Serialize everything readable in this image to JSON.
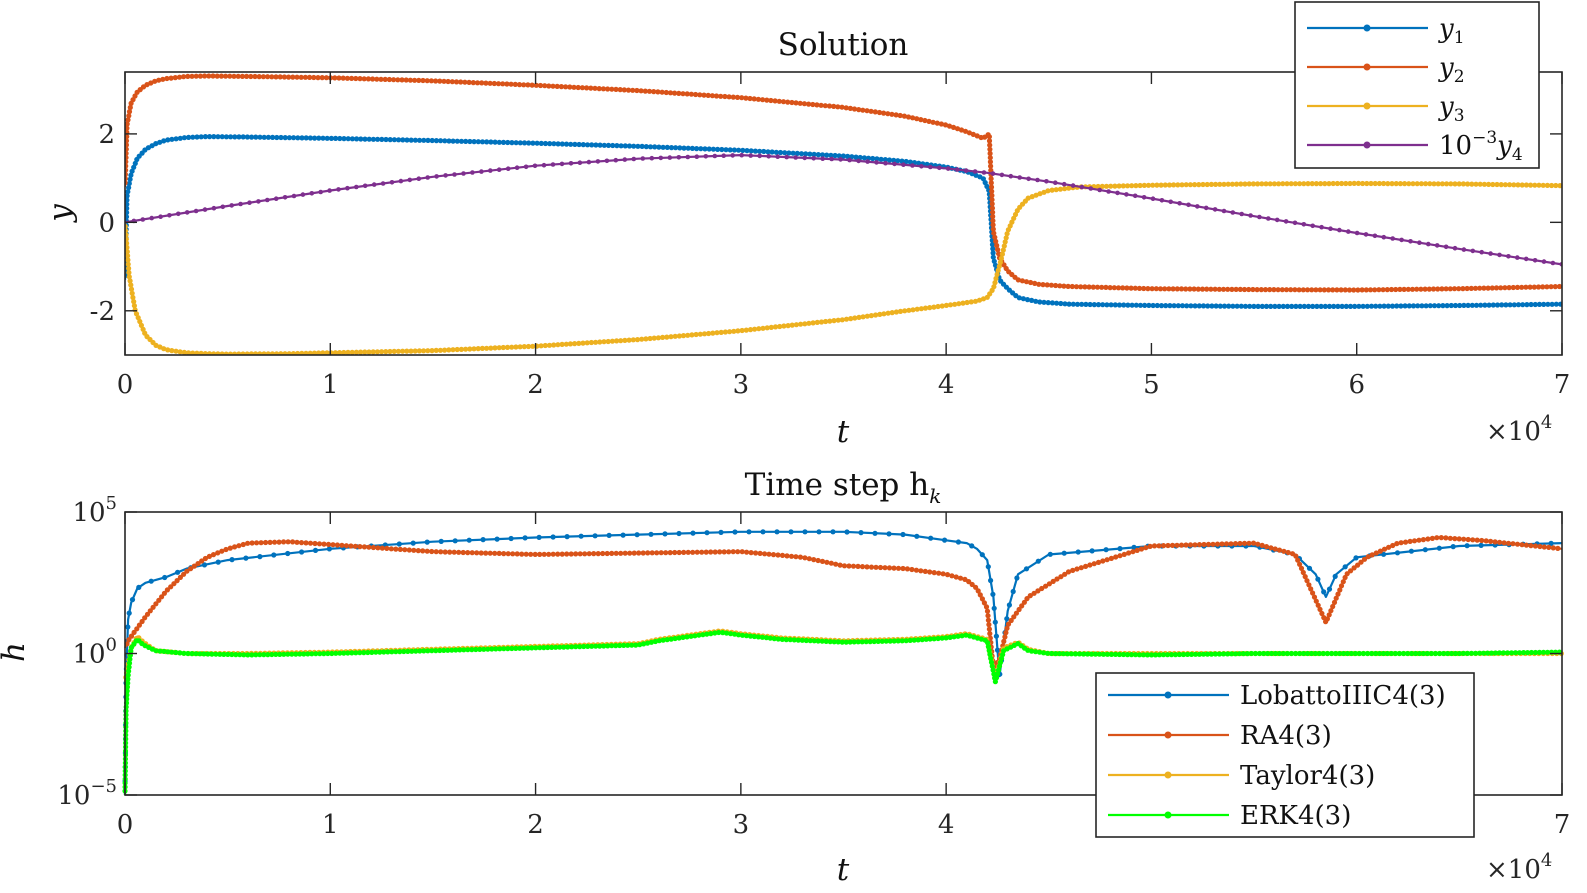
{
  "chart_data": [
    {
      "type": "line",
      "title": "Solution",
      "xlabel": "t",
      "ylabel": "y",
      "x_exponent_label": "×10",
      "x_exponent_sup": "4",
      "xlim": [
        0,
        70000
      ],
      "ylim": [
        -3,
        3.4
      ],
      "xticks": [
        0,
        10000,
        20000,
        30000,
        40000,
        50000,
        60000,
        70000
      ],
      "xticklabels": [
        "0",
        "1",
        "2",
        "3",
        "4",
        "5",
        "6",
        "7"
      ],
      "yticks": [
        -2,
        0,
        2
      ],
      "yticklabels": [
        "-2",
        "0",
        "2"
      ],
      "grid": false,
      "legend_position": "top-right",
      "series": [
        {
          "name": "y",
          "subscript": "1",
          "color": "#0072BD",
          "x": [
            0,
            100,
            300,
            600,
            1000,
            1500,
            2000,
            3000,
            4000,
            6000,
            10000,
            15000,
            20000,
            25000,
            30000,
            35000,
            38000,
            40000,
            41000,
            41800,
            42100,
            42300,
            42600,
            43000,
            43500,
            44500,
            46000,
            50000,
            55000,
            60000,
            65000,
            70000
          ],
          "y": [
            -1.3,
            0.6,
            1.1,
            1.45,
            1.65,
            1.78,
            1.86,
            1.92,
            1.94,
            1.93,
            1.9,
            1.85,
            1.79,
            1.72,
            1.63,
            1.5,
            1.38,
            1.25,
            1.15,
            1.0,
            0.7,
            -0.8,
            -1.3,
            -1.5,
            -1.7,
            -1.8,
            -1.85,
            -1.88,
            -1.9,
            -1.9,
            -1.88,
            -1.85
          ]
        },
        {
          "name": "y",
          "subscript": "2",
          "color": "#D95319",
          "x": [
            0,
            100,
            300,
            600,
            1000,
            1500,
            2000,
            3000,
            4000,
            6000,
            10000,
            15000,
            20000,
            25000,
            30000,
            35000,
            38000,
            40000,
            41000,
            41800,
            42100,
            42300,
            42600,
            43000,
            43500,
            44500,
            46000,
            50000,
            55000,
            60000,
            65000,
            70000
          ],
          "y": [
            0.8,
            2.2,
            2.7,
            2.95,
            3.1,
            3.2,
            3.25,
            3.3,
            3.31,
            3.3,
            3.27,
            3.2,
            3.1,
            2.98,
            2.82,
            2.6,
            2.4,
            2.2,
            2.05,
            1.9,
            2.0,
            -0.2,
            -0.8,
            -1.1,
            -1.3,
            -1.4,
            -1.45,
            -1.5,
            -1.52,
            -1.53,
            -1.5,
            -1.45
          ]
        },
        {
          "name": "y",
          "subscript": "3",
          "color": "#EDB120",
          "x": [
            0,
            200,
            500,
            1000,
            1500,
            2000,
            3000,
            4000,
            5000,
            8000,
            15000,
            20000,
            25000,
            30000,
            35000,
            38000,
            40000,
            41500,
            42000,
            42300,
            42700,
            43000,
            43500,
            44000,
            45000,
            46500,
            50000,
            55000,
            60000,
            65000,
            70000
          ],
          "y": [
            0,
            -1.2,
            -2.0,
            -2.55,
            -2.78,
            -2.88,
            -2.95,
            -2.97,
            -2.98,
            -2.97,
            -2.9,
            -2.8,
            -2.65,
            -2.45,
            -2.2,
            -2.0,
            -1.88,
            -1.78,
            -1.7,
            -1.5,
            -0.8,
            -0.2,
            0.3,
            0.55,
            0.72,
            0.8,
            0.84,
            0.87,
            0.88,
            0.87,
            0.83
          ]
        },
        {
          "name": "10",
          "superscript": "−3",
          "suffix": "y",
          "suffix_subscript": "4",
          "color": "#7E2F8E",
          "x": [
            0,
            5000,
            10000,
            15000,
            20000,
            25000,
            30000,
            35000,
            40000,
            42000,
            45000,
            50000,
            55000,
            60000,
            65000,
            70000
          ],
          "y": [
            0,
            0.37,
            0.72,
            1.03,
            1.28,
            1.44,
            1.52,
            1.42,
            1.22,
            1.12,
            0.92,
            0.54,
            0.14,
            -0.24,
            -0.6,
            -0.95
          ]
        }
      ]
    },
    {
      "type": "line",
      "title": "Time step h",
      "title_subscript": "k",
      "xlabel": "t",
      "ylabel": "h",
      "x_exponent_label": "×10",
      "x_exponent_sup": "4",
      "xlim": [
        0,
        70000
      ],
      "ylim_log10": [
        -5,
        5
      ],
      "yscale": "log",
      "xticks": [
        0,
        10000,
        20000,
        30000,
        40000,
        70000
      ],
      "xticklabels": [
        "0",
        "1",
        "2",
        "3",
        "4",
        "7"
      ],
      "yticks_log10": [
        -5,
        0,
        5
      ],
      "yticklabels_base": [
        "10",
        "10",
        "10"
      ],
      "yticklabels_exp": [
        "−5",
        "0",
        "5"
      ],
      "grid": false,
      "legend_position": "bottom-right",
      "series": [
        {
          "name": "LobattoIIIC4(3)",
          "color": "#0072BD",
          "x": [
            0,
            50,
            150,
            300,
            600,
            1000,
            2000,
            3000,
            5000,
            10000,
            15000,
            20000,
            25000,
            30000,
            35000,
            38000,
            40000,
            41000,
            41500,
            42000,
            42300,
            42600,
            43000,
            43500,
            45000,
            50000,
            55000,
            57000,
            58000,
            58500,
            59000,
            60000,
            65000,
            70000
          ],
          "log10_h": [
            -5,
            -1,
            1.2,
            1.8,
            2.3,
            2.5,
            2.7,
            3.0,
            3.3,
            3.7,
            3.95,
            4.1,
            4.2,
            4.3,
            4.3,
            4.2,
            4.0,
            3.9,
            3.7,
            3.3,
            2.0,
            -0.8,
            1.5,
            2.8,
            3.5,
            3.8,
            3.8,
            3.5,
            2.8,
            2.0,
            2.8,
            3.4,
            3.8,
            3.9
          ]
        },
        {
          "name": "RA4(3)",
          "color": "#D95319",
          "x": [
            0,
            200,
            500,
            1000,
            2000,
            3000,
            4000,
            5000,
            6000,
            8000,
            10000,
            15000,
            20000,
            25000,
            30000,
            33000,
            35000,
            38000,
            40000,
            41000,
            41500,
            42000,
            42300,
            42600,
            43000,
            44000,
            46000,
            50000,
            55000,
            57000,
            58500,
            59500,
            60500,
            62000,
            64000,
            66000,
            70000
          ],
          "log10_h": [
            0.2,
            0.5,
            0.8,
            1.3,
            2.2,
            2.9,
            3.4,
            3.7,
            3.9,
            3.95,
            3.85,
            3.6,
            3.5,
            3.55,
            3.6,
            3.4,
            3.1,
            3.0,
            2.8,
            2.6,
            2.3,
            1.6,
            -0.5,
            -0.2,
            1.0,
            2.0,
            2.9,
            3.8,
            3.9,
            3.5,
            1.1,
            2.8,
            3.4,
            3.9,
            4.1,
            4.0,
            3.7
          ]
        },
        {
          "name": "Taylor4(3)",
          "color": "#EDB120",
          "x": [
            0,
            300,
            600,
            900,
            1500,
            3000,
            6000,
            10000,
            15000,
            20000,
            25000,
            26000,
            27500,
            29000,
            30000,
            32000,
            35000,
            38000,
            40000,
            41000,
            42000,
            42400,
            42800,
            43500,
            44000,
            45000,
            50000,
            55000,
            60000,
            65000,
            70000
          ],
          "log10_h": [
            -1.0,
            0.2,
            0.6,
            0.4,
            0.1,
            0.0,
            0.0,
            0.05,
            0.15,
            0.25,
            0.35,
            0.5,
            0.65,
            0.8,
            0.7,
            0.55,
            0.45,
            0.5,
            0.6,
            0.7,
            0.5,
            -0.9,
            0.2,
            0.4,
            0.15,
            0.0,
            0.0,
            0.0,
            0.0,
            0.0,
            0.0
          ]
        },
        {
          "name": "ERK4(3)",
          "color": "#00FF00",
          "x": [
            0,
            50,
            150,
            300,
            600,
            900,
            1500,
            3000,
            6000,
            10000,
            15000,
            20000,
            25000,
            26000,
            27500,
            29000,
            30000,
            32000,
            35000,
            38000,
            40000,
            41000,
            42000,
            42400,
            42800,
            43500,
            44000,
            45000,
            50000,
            55000,
            60000,
            65000,
            70000
          ],
          "log10_h": [
            -5,
            -2,
            -0.8,
            0.2,
            0.5,
            0.3,
            0.1,
            0.0,
            -0.05,
            0.0,
            0.1,
            0.2,
            0.3,
            0.45,
            0.6,
            0.75,
            0.65,
            0.5,
            0.4,
            0.45,
            0.55,
            0.65,
            0.45,
            -1.0,
            0.1,
            0.35,
            0.1,
            0.0,
            -0.05,
            0.0,
            0.0,
            0.0,
            0.05
          ]
        }
      ]
    }
  ]
}
